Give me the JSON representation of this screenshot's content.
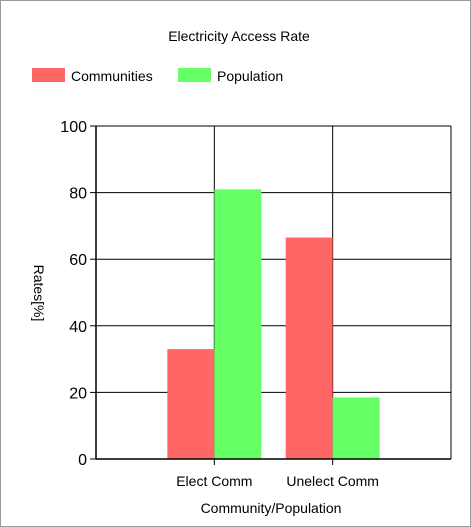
{
  "chart_data": {
    "type": "bar",
    "title": "Electricity Access Rate",
    "xlabel": "Community/Population",
    "ylabel": "Rates[%]",
    "categories": [
      "Elect Comm",
      "Unelect Comm"
    ],
    "series": [
      {
        "name": "Communities",
        "color": "#ff6666",
        "values": [
          33,
          66.5
        ]
      },
      {
        "name": "Population",
        "color": "#66ff66",
        "values": [
          81,
          18.5
        ]
      }
    ],
    "ylim": [
      0,
      100
    ],
    "yticks": [
      "0",
      "20",
      "40",
      "60",
      "80",
      "100"
    ],
    "grid": true,
    "legend_position": "top-left"
  }
}
